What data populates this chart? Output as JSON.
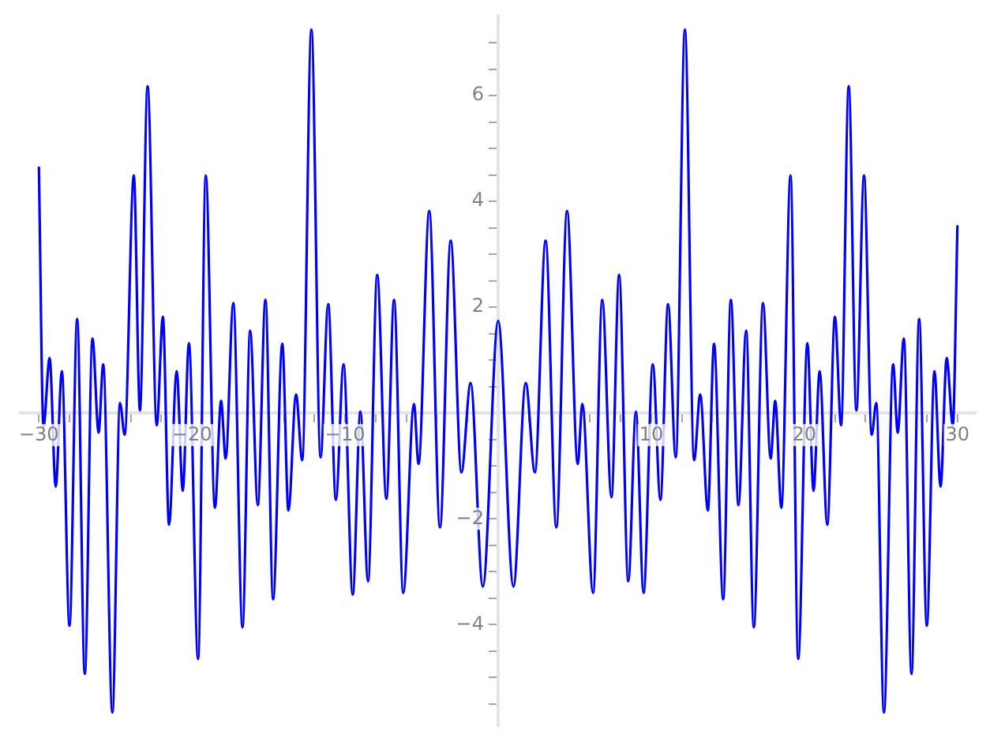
{
  "chart_data": {
    "type": "line",
    "color": "#0000ff",
    "marker": "none",
    "line_style": "solid",
    "grid": false,
    "x": [
      -30.0,
      -29.7,
      -29.3,
      -28.9,
      -28.5,
      -28.0,
      -27.5,
      -27.0,
      -26.5,
      -26.1,
      -25.8,
      -25.2,
      -24.7,
      -24.4,
      -23.8,
      -23.4,
      -22.9,
      -22.3,
      -21.9,
      -21.5,
      -21.0,
      -20.6,
      -20.2,
      -19.6,
      -19.1,
      -18.5,
      -18.1,
      -17.8,
      -17.3,
      -16.7,
      -16.2,
      -15.7,
      -15.2,
      -14.7,
      -14.1,
      -13.7,
      -13.2,
      -12.8,
      -12.2,
      -11.6,
      -11.1,
      -10.6,
      -10.1,
      -9.5,
      -9.0,
      -8.5,
      -7.9,
      -7.3,
      -6.8,
      -6.2,
      -5.5,
      -5.2,
      -4.5,
      -3.8,
      -3.1,
      -2.4,
      -1.8,
      -1.0,
      0,
      1.0,
      1.8,
      2.4,
      3.1,
      3.8,
      4.5,
      5.2,
      5.5,
      6.2,
      6.8,
      7.4,
      7.9,
      8.5,
      9.0,
      9.5,
      10.1,
      10.6,
      11.1,
      11.6,
      12.2,
      12.8,
      13.2,
      13.7,
      14.1,
      14.7,
      15.2,
      15.7,
      16.2,
      16.7,
      17.3,
      17.8,
      18.1,
      18.5,
      19.1,
      19.6,
      20.2,
      20.6,
      21.0,
      21.5,
      22.0,
      22.4,
      22.9,
      23.4,
      23.9,
      24.4,
      24.7,
      25.2,
      25.8,
      26.1,
      26.5,
      27.0,
      27.5,
      28.0,
      28.5,
      28.9,
      29.3,
      29.7,
      30.0
    ],
    "values": [
      4.64,
      -0.25,
      1.04,
      -1.39,
      0.79,
      -4.02,
      1.78,
      -4.93,
      1.41,
      -0.37,
      0.92,
      -5.66,
      0.19,
      -0.41,
      4.49,
      0.05,
      6.18,
      -0.23,
      1.82,
      -2.11,
      0.79,
      -1.47,
      1.32,
      -4.65,
      4.49,
      -1.79,
      0.23,
      -0.86,
      2.08,
      -4.05,
      1.56,
      -1.74,
      2.14,
      -3.52,
      1.31,
      -1.84,
      0.35,
      -0.89,
      7.25,
      -0.84,
      2.06,
      -1.64,
      0.92,
      -3.43,
      0.03,
      -3.18,
      2.61,
      -1.62,
      2.14,
      -3.4,
      0.17,
      -0.96,
      3.82,
      -2.16,
      3.26,
      -1.12,
      0.57,
      -3.28,
      1.74,
      -3.28,
      0.57,
      -1.12,
      3.26,
      -2.16,
      3.82,
      -0.96,
      0.17,
      -3.4,
      2.14,
      -1.59,
      2.61,
      -3.18,
      0.03,
      -3.4,
      0.92,
      -1.64,
      2.06,
      -0.84,
      7.25,
      -0.89,
      0.35,
      -1.84,
      1.31,
      -3.52,
      2.14,
      -1.74,
      1.56,
      -4.05,
      2.08,
      -0.86,
      0.23,
      -1.79,
      4.49,
      -4.65,
      1.32,
      -1.47,
      0.79,
      -2.11,
      1.82,
      -0.23,
      6.18,
      0.05,
      4.49,
      -0.41,
      0.19,
      -5.66,
      0.92,
      -0.37,
      1.41,
      -4.93,
      1.78,
      -4.02,
      0.79,
      -1.39,
      1.04,
      -0.23,
      3.53
    ],
    "xlim": [
      -31.2,
      31.2
    ],
    "ylim": [
      -5.92,
      7.51
    ],
    "xticks": [
      {
        "value": -30,
        "label": "−30"
      },
      {
        "value": -28,
        "label": null
      },
      {
        "value": -26,
        "label": null
      },
      {
        "value": -24,
        "label": null
      },
      {
        "value": -22,
        "label": null
      },
      {
        "value": -20,
        "label": "−20"
      },
      {
        "value": -18,
        "label": null
      },
      {
        "value": -16,
        "label": null
      },
      {
        "value": -14,
        "label": null
      },
      {
        "value": -12,
        "label": null
      },
      {
        "value": -10,
        "label": "−10"
      },
      {
        "value": -8,
        "label": null
      },
      {
        "value": -6,
        "label": null
      },
      {
        "value": -4,
        "label": null
      },
      {
        "value": -2,
        "label": null
      },
      {
        "value": 2,
        "label": null
      },
      {
        "value": 4,
        "label": null
      },
      {
        "value": 6,
        "label": null
      },
      {
        "value": 8,
        "label": null
      },
      10,
      {
        "value": 12,
        "label": null
      },
      {
        "value": 14,
        "label": null
      },
      {
        "value": 16,
        "label": null
      },
      {
        "value": 18,
        "label": null
      },
      20,
      {
        "value": 22,
        "label": null
      },
      {
        "value": 24,
        "label": null
      },
      {
        "value": 26,
        "label": null
      },
      {
        "value": 28,
        "label": null
      },
      30
    ],
    "yticks": [
      {
        "value": -5.5,
        "label": null
      },
      {
        "value": -5,
        "label": null
      },
      {
        "value": -4.5,
        "label": null
      },
      {
        "value": -4,
        "label": "−4"
      },
      {
        "value": -3.5,
        "label": null
      },
      {
        "value": -3,
        "label": null
      },
      {
        "value": -2.5,
        "label": null
      },
      {
        "value": -2,
        "label": "−2"
      },
      {
        "value": -1.5,
        "label": null
      },
      {
        "value": -1,
        "label": null
      },
      {
        "value": -0.5,
        "label": null
      },
      {
        "value": 0.5,
        "label": null
      },
      {
        "value": 1,
        "label": null
      },
      {
        "value": 1.5,
        "label": null
      },
      2,
      {
        "value": 2.5,
        "label": null
      },
      {
        "value": 3,
        "label": null
      },
      {
        "value": 3.5,
        "label": null
      },
      4,
      {
        "value": 4.5,
        "label": null
      },
      {
        "value": 5,
        "label": null
      },
      {
        "value": 5.5,
        "label": null
      },
      6,
      {
        "value": 6.5,
        "label": null
      },
      {
        "value": 7,
        "label": null
      }
    ]
  }
}
